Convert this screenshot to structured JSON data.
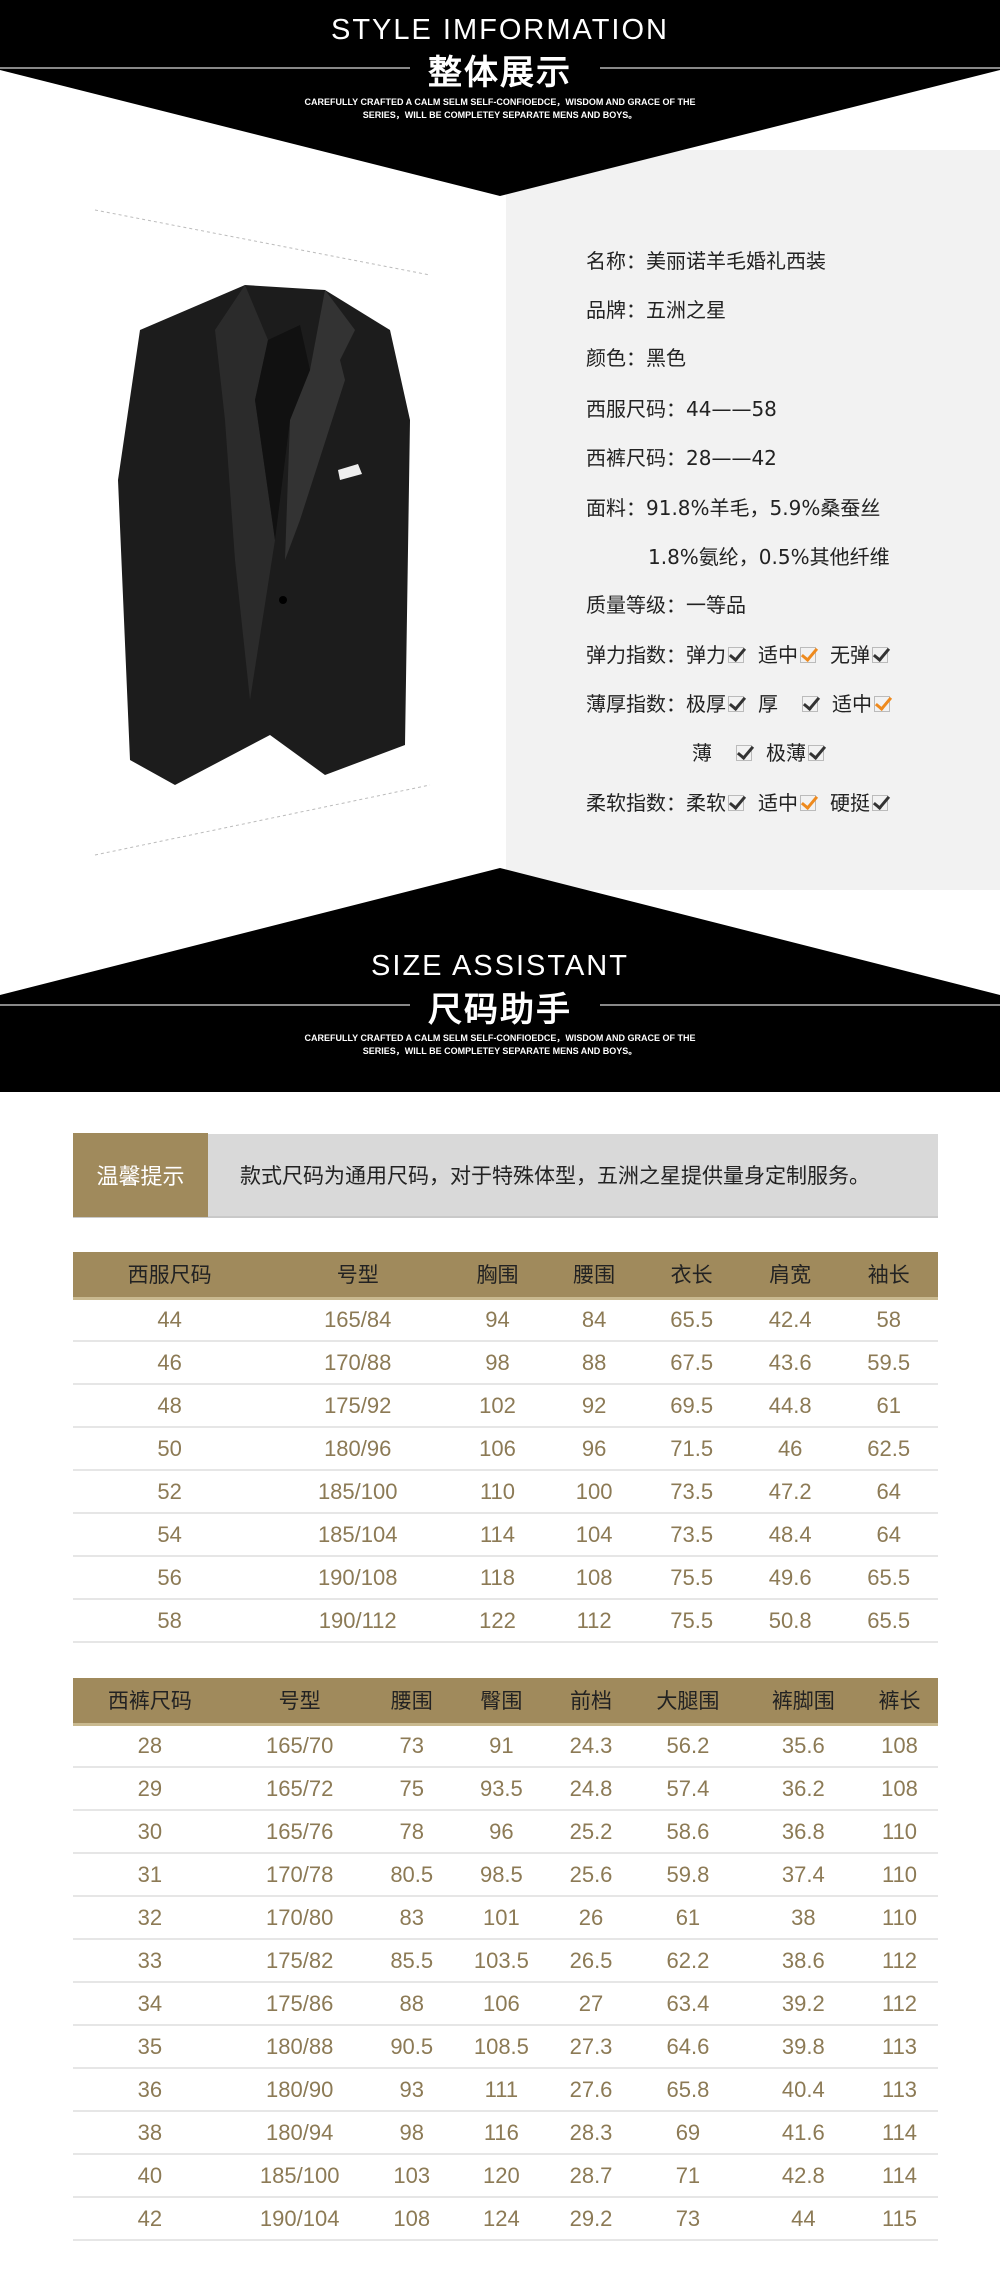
{
  "style_section": {
    "title_en": "STYLE IMFORMATION",
    "title_cn": "整体展示",
    "subtitle_1": "CAREFULLY CRAFTED A CALM SELM SELF-CONFIOEDCE，WISDOM AND GRACE OF THE",
    "subtitle_2": "SERIES，WILL BE COMPLETEY SEPARATE MENS AND BOYS。"
  },
  "specs": {
    "name": "名称：美丽诺羊毛婚礼西装",
    "brand": "品牌：五洲之星",
    "color": "颜色：黑色",
    "jacket_size": "西服尺码：44——58",
    "pants_size": "西裤尺码：28——42",
    "fabric_1": "面料：91.8%羊毛，5.9%桑蚕丝",
    "fabric_2": "1.8%氨纶，0.5%其他纤维",
    "quality": "质量等级：一等品",
    "elasticity": {
      "label": "弹力指数：",
      "options": [
        {
          "text": "弹力",
          "checked": false
        },
        {
          "text": "适中",
          "checked": true
        },
        {
          "text": "无弹",
          "checked": false
        }
      ]
    },
    "thickness": {
      "label": "薄厚指数：",
      "options": [
        {
          "text": "极厚",
          "checked": false
        },
        {
          "text": "厚",
          "checked": false
        },
        {
          "text": "适中",
          "checked": true
        },
        {
          "text": "薄",
          "checked": false
        },
        {
          "text": "极薄",
          "checked": false
        }
      ]
    },
    "softness": {
      "label": "柔软指数：",
      "options": [
        {
          "text": "柔软",
          "checked": false
        },
        {
          "text": "适中",
          "checked": true
        },
        {
          "text": "硬挺",
          "checked": false
        }
      ]
    }
  },
  "size_section": {
    "title_en": "SIZE ASSISTANT",
    "title_cn": "尺码助手",
    "subtitle_1": "CAREFULLY CRAFTED A CALM SELM SELF-CONFIOEDCE，WISDOM AND GRACE OF THE",
    "subtitle_2": "SERIES，WILL BE COMPLETEY SEPARATE MENS AND BOYS。"
  },
  "tip": {
    "label": "温馨提示",
    "text": "款式尺码为通用尺码，对于特殊体型，五洲之星提供量身定制服务。"
  },
  "jacket_table": {
    "headers": [
      "西服尺码",
      "号型",
      "胸围",
      "腰围",
      "衣长",
      "肩宽",
      "袖长"
    ],
    "rows": [
      [
        "44",
        "165/84",
        "94",
        "84",
        "65.5",
        "42.4",
        "58"
      ],
      [
        "46",
        "170/88",
        "98",
        "88",
        "67.5",
        "43.6",
        "59.5"
      ],
      [
        "48",
        "175/92",
        "102",
        "92",
        "69.5",
        "44.8",
        "61"
      ],
      [
        "50",
        "180/96",
        "106",
        "96",
        "71.5",
        "46",
        "62.5"
      ],
      [
        "52",
        "185/100",
        "110",
        "100",
        "73.5",
        "47.2",
        "64"
      ],
      [
        "54",
        "185/104",
        "114",
        "104",
        "73.5",
        "48.4",
        "64"
      ],
      [
        "56",
        "190/108",
        "118",
        "108",
        "75.5",
        "49.6",
        "65.5"
      ],
      [
        "58",
        "190/112",
        "122",
        "112",
        "75.5",
        "50.8",
        "65.5"
      ]
    ]
  },
  "pants_table": {
    "headers": [
      "西裤尺码",
      "号型",
      "腰围",
      "臀围",
      "前档",
      "大腿围",
      "裤脚围",
      "裤长"
    ],
    "rows": [
      [
        "28",
        "165/70",
        "73",
        "91",
        "24.3",
        "56.2",
        "35.6",
        "108"
      ],
      [
        "29",
        "165/72",
        "75",
        "93.5",
        "24.8",
        "57.4",
        "36.2",
        "108"
      ],
      [
        "30",
        "165/76",
        "78",
        "96",
        "25.2",
        "58.6",
        "36.8",
        "110"
      ],
      [
        "31",
        "170/78",
        "80.5",
        "98.5",
        "25.6",
        "59.8",
        "37.4",
        "110"
      ],
      [
        "32",
        "170/80",
        "83",
        "101",
        "26",
        "61",
        "38",
        "110"
      ],
      [
        "33",
        "175/82",
        "85.5",
        "103.5",
        "26.5",
        "62.2",
        "38.6",
        "112"
      ],
      [
        "34",
        "175/86",
        "88",
        "106",
        "27",
        "63.4",
        "39.2",
        "112"
      ],
      [
        "35",
        "180/88",
        "90.5",
        "108.5",
        "27.3",
        "64.6",
        "39.8",
        "113"
      ],
      [
        "36",
        "180/90",
        "93",
        "111",
        "27.6",
        "65.8",
        "40.4",
        "113"
      ],
      [
        "38",
        "180/94",
        "98",
        "116",
        "28.3",
        "69",
        "41.6",
        "114"
      ],
      [
        "40",
        "185/100",
        "103",
        "120",
        "28.7",
        "71",
        "42.8",
        "114"
      ],
      [
        "42",
        "190/104",
        "108",
        "124",
        "29.2",
        "73",
        "44",
        "115"
      ]
    ]
  },
  "colors": {
    "gold": "#a08a5c",
    "gold_text": "#8c7a55",
    "check_on": "#ee8a1e",
    "panel_gray": "#f2f2f2"
  }
}
